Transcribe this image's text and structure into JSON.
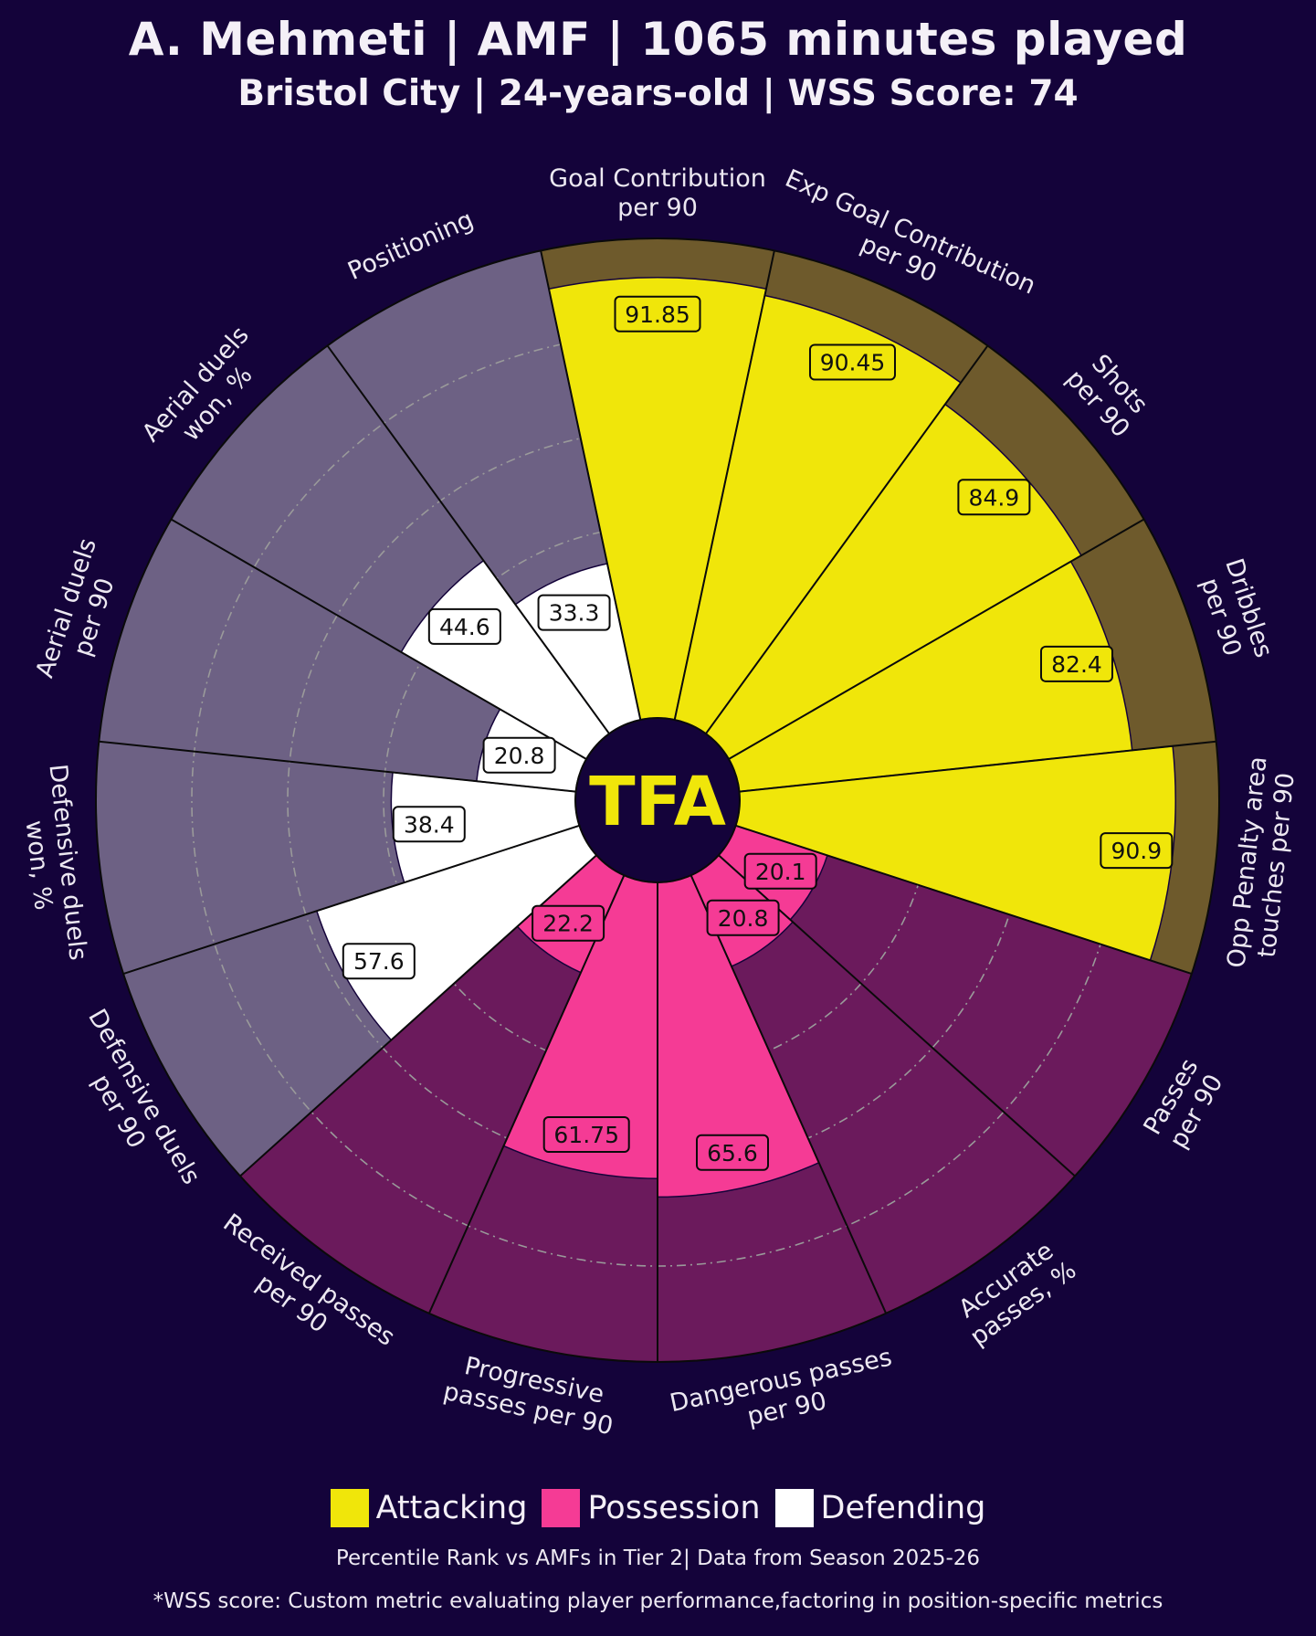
{
  "header": {
    "title": "A. Mehmeti | AMF | 1065 minutes played",
    "subtitle": "Bristol City | 24-years-old | WSS Score: 74"
  },
  "logo_text": "TFA",
  "colors": {
    "background": "#14033a",
    "attacking": "#f0e60a",
    "attacking_bg": "#6e5a2c",
    "possession": "#f53b95",
    "possession_bg": "#6b1a5c",
    "defending": "#ffffff",
    "defending_bg": "#6d6184",
    "logo_text": "#f0e60a"
  },
  "legend": [
    {
      "label": "Attacking",
      "color": "#f0e60a"
    },
    {
      "label": "Possession",
      "color": "#f53b95"
    },
    {
      "label": "Defending",
      "color": "#ffffff"
    }
  ],
  "footnote": "Percentile Rank vs AMFs in Tier 2| Data from Season 2025-26",
  "disclaimer": "*WSS score: Custom metric evaluating player performance,factoring in position-specific metrics",
  "chart_data": {
    "type": "pie-radar",
    "title": "A. Mehmeti | AMF | 1065 minutes played",
    "scale": [
      0,
      100
    ],
    "gridlines": [
      20,
      40,
      60,
      80
    ],
    "categories": [
      {
        "label": [
          "Goal Contribution",
          "per 90"
        ],
        "value": 91.85,
        "display": "91.85",
        "group": "Attacking"
      },
      {
        "label": [
          "Exp Goal Contribution",
          "per 90"
        ],
        "value": 90.45,
        "display": "90.45",
        "group": "Attacking"
      },
      {
        "label": [
          "Shots",
          "per 90"
        ],
        "value": 84.9,
        "display": "84.9",
        "group": "Attacking"
      },
      {
        "label": [
          "Dribbles",
          "per 90"
        ],
        "value": 82.4,
        "display": "82.4",
        "group": "Attacking"
      },
      {
        "label": [
          "Opp Penalty area",
          "touches per 90"
        ],
        "value": 90.9,
        "display": "90.9",
        "group": "Attacking"
      },
      {
        "label": [
          "Passes",
          "per 90"
        ],
        "value": 20.1,
        "display": "20.1",
        "group": "Possession"
      },
      {
        "label": [
          "Accurate",
          "passes, %"
        ],
        "value": 20.8,
        "display": "20.8",
        "group": "Possession"
      },
      {
        "label": [
          "Dangerous passes",
          "per 90"
        ],
        "value": 65.6,
        "display": "65.6",
        "group": "Possession"
      },
      {
        "label": [
          "Progressive",
          "passes per 90"
        ],
        "value": 61.75,
        "display": "61.75",
        "group": "Possession"
      },
      {
        "label": [
          "Received passes",
          "per 90"
        ],
        "value": 22.2,
        "display": "22.2",
        "group": "Possession"
      },
      {
        "label": [
          "Defensive duels",
          "per 90"
        ],
        "value": 57.6,
        "display": "57.6",
        "group": "Defending"
      },
      {
        "label": [
          "Defensive duels",
          "won, %"
        ],
        "value": 38.4,
        "display": "38.4",
        "group": "Defending"
      },
      {
        "label": [
          "Aerial duels",
          "per 90"
        ],
        "value": 20.8,
        "display": "20.8",
        "group": "Defending"
      },
      {
        "label": [
          "Aerial duels",
          "won, %"
        ],
        "value": 44.6,
        "display": "44.6",
        "group": "Defending"
      },
      {
        "label": [
          "Positioning"
        ],
        "value": 33.3,
        "display": "33.3",
        "group": "Defending"
      }
    ]
  }
}
